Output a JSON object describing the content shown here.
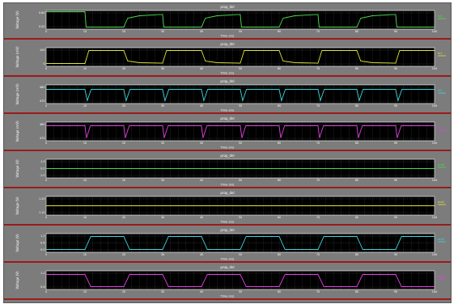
{
  "panels": [
    {
      "title": "prop_del",
      "ylabel": "Voltage (V)",
      "xlabel": "Time (ns)",
      "legend": "in0",
      "color": "#4cdc4c",
      "yticks": [
        "0.60",
        "0.00"
      ],
      "xticks": [
        "0",
        "10",
        "20",
        "30",
        "40",
        "50",
        "60",
        "70",
        "80",
        "90",
        "100"
      ]
    },
    {
      "title": "prop_del",
      "ylabel": "Voltage (mV)",
      "xlabel": "Time (ns)",
      "legend": "in1",
      "color": "#e2e23a",
      "yticks": [
        "100",
        "0"
      ],
      "xticks": [
        "0",
        "10",
        "20",
        "30",
        "40",
        "50",
        "60",
        "70",
        "80",
        "90",
        "100"
      ]
    },
    {
      "title": "prop_del",
      "ylabel": "Voltage (mV)",
      "xlabel": "Time (ns)",
      "legend": "in2",
      "color": "#3ad6dc",
      "yticks": [
        "480",
        "470"
      ],
      "xticks": [
        "0",
        "10",
        "20",
        "30",
        "40",
        "50",
        "60",
        "70",
        "80",
        "90",
        "100"
      ]
    },
    {
      "title": "prop_del",
      "ylabel": "Voltage (mV)",
      "xlabel": "Time (ns)",
      "legend": "in3",
      "color": "#e040e0",
      "yticks": [
        "480",
        "470"
      ],
      "xticks": [
        "0",
        "10",
        "20",
        "30",
        "40",
        "50",
        "60",
        "70",
        "80",
        "90",
        "100"
      ]
    },
    {
      "title": "prop_del",
      "ylabel": "Voltage (V)",
      "xlabel": "Time (ns)",
      "legend": "out0",
      "color": "#4cdc4c",
      "yticks": [
        "1.0",
        "0.0",
        "-1.0"
      ],
      "xticks": [
        "0",
        "10",
        "20",
        "30",
        "40",
        "50",
        "60",
        "70",
        "80",
        "90",
        "100"
      ]
    },
    {
      "title": "prop_del",
      "ylabel": "Voltage (V)",
      "xlabel": "Time (ns)",
      "legend": "out1",
      "color": "#e2e23a",
      "yticks": [
        "1.20",
        "1.10"
      ],
      "xticks": [
        "0",
        "10",
        "20",
        "30",
        "40",
        "50",
        "60",
        "70",
        "80",
        "90",
        "100"
      ]
    },
    {
      "title": "prop_del",
      "ylabel": "Voltage (V)",
      "xlabel": "Time (ns)",
      "legend": "out2",
      "color": "#3ad6dc",
      "yticks": [
        "1.2",
        "0.6",
        "0.0"
      ],
      "xticks": [
        "0",
        "10",
        "20",
        "30",
        "40",
        "50",
        "60",
        "70",
        "80",
        "90",
        "100"
      ]
    },
    {
      "title": "prop_del",
      "ylabel": "Voltage (V)",
      "xlabel": "Time (ns)",
      "legend": "out3",
      "color": "#e040e0",
      "yticks": [
        "1.2",
        "0.6"
      ],
      "xticks": [
        "0",
        "10",
        "20",
        "30",
        "40",
        "50",
        "60",
        "70",
        "80",
        "90",
        "100"
      ]
    }
  ],
  "waves": [
    {
      "kind": "in0",
      "points": [
        [
          0,
          1
        ],
        [
          10,
          1
        ],
        [
          10.3,
          0.05
        ],
        [
          20,
          0.05
        ],
        [
          21,
          0.6
        ],
        [
          24,
          0.75
        ],
        [
          29,
          0.82
        ],
        [
          30,
          0.82
        ],
        [
          30.3,
          0.05
        ],
        [
          40,
          0.05
        ],
        [
          41,
          0.6
        ],
        [
          44,
          0.75
        ],
        [
          49,
          0.82
        ],
        [
          50,
          0.82
        ],
        [
          50.3,
          0.05
        ],
        [
          60,
          0.05
        ],
        [
          61,
          0.6
        ],
        [
          64,
          0.75
        ],
        [
          69,
          0.82
        ],
        [
          70,
          0.82
        ],
        [
          70.3,
          0.05
        ],
        [
          80,
          0.05
        ],
        [
          81,
          0.6
        ],
        [
          84,
          0.75
        ],
        [
          89,
          0.82
        ],
        [
          90,
          0.82
        ],
        [
          90.3,
          0.05
        ],
        [
          100,
          0.05
        ]
      ]
    },
    {
      "kind": "in1",
      "points": [
        [
          0,
          0.1
        ],
        [
          10,
          0.1
        ],
        [
          11,
          0.9
        ],
        [
          20,
          0.9
        ],
        [
          21,
          0.25
        ],
        [
          24,
          0.15
        ],
        [
          30,
          0.12
        ],
        [
          31,
          0.9
        ],
        [
          40,
          0.9
        ],
        [
          41,
          0.25
        ],
        [
          44,
          0.15
        ],
        [
          50,
          0.12
        ],
        [
          51,
          0.9
        ],
        [
          60,
          0.9
        ],
        [
          61,
          0.25
        ],
        [
          64,
          0.15
        ],
        [
          70,
          0.12
        ],
        [
          71,
          0.9
        ],
        [
          80,
          0.9
        ],
        [
          81,
          0.25
        ],
        [
          84,
          0.15
        ],
        [
          90,
          0.12
        ],
        [
          91,
          0.9
        ],
        [
          100,
          0.9
        ]
      ]
    },
    {
      "kind": "in2",
      "points": [
        [
          0,
          0.8
        ],
        [
          10,
          0.8
        ],
        [
          10.6,
          0.1
        ],
        [
          11.6,
          0.8
        ],
        [
          20,
          0.8
        ],
        [
          20.6,
          0.1
        ],
        [
          21.6,
          0.8
        ],
        [
          30,
          0.8
        ],
        [
          30.6,
          0.1
        ],
        [
          31.6,
          0.8
        ],
        [
          40,
          0.8
        ],
        [
          40.6,
          0.1
        ],
        [
          41.6,
          0.8
        ],
        [
          50,
          0.8
        ],
        [
          50.6,
          0.1
        ],
        [
          51.6,
          0.8
        ],
        [
          60,
          0.8
        ],
        [
          60.6,
          0.1
        ],
        [
          61.6,
          0.8
        ],
        [
          70,
          0.8
        ],
        [
          70.6,
          0.1
        ],
        [
          71.6,
          0.8
        ],
        [
          80,
          0.8
        ],
        [
          80.6,
          0.1
        ],
        [
          81.6,
          0.8
        ],
        [
          90,
          0.8
        ],
        [
          90.6,
          0.1
        ],
        [
          91.6,
          0.8
        ],
        [
          100,
          0.8
        ]
      ]
    },
    {
      "kind": "in3",
      "points": [
        [
          0,
          0.85
        ],
        [
          10,
          0.85
        ],
        [
          10.4,
          0.1
        ],
        [
          11.4,
          0.85
        ],
        [
          20,
          0.85
        ],
        [
          20.4,
          0.1
        ],
        [
          21.4,
          0.85
        ],
        [
          30,
          0.85
        ],
        [
          30.4,
          0.1
        ],
        [
          31.4,
          0.85
        ],
        [
          40,
          0.85
        ],
        [
          40.4,
          0.1
        ],
        [
          41.4,
          0.85
        ],
        [
          50,
          0.85
        ],
        [
          50.4,
          0.1
        ],
        [
          51.4,
          0.85
        ],
        [
          60,
          0.85
        ],
        [
          60.4,
          0.1
        ],
        [
          61.4,
          0.85
        ],
        [
          70,
          0.85
        ],
        [
          70.4,
          0.1
        ],
        [
          71.4,
          0.85
        ],
        [
          80,
          0.85
        ],
        [
          80.4,
          0.1
        ],
        [
          81.4,
          0.85
        ],
        [
          90,
          0.85
        ],
        [
          90.4,
          0.1
        ],
        [
          91.4,
          0.85
        ],
        [
          100,
          0.85
        ]
      ]
    },
    {
      "kind": "out0",
      "points": [
        [
          0,
          0.5
        ],
        [
          100,
          0.5
        ]
      ]
    },
    {
      "kind": "out1",
      "points": [
        [
          0,
          0.5
        ],
        [
          100,
          0.5
        ]
      ]
    },
    {
      "kind": "out2",
      "points": [
        [
          0,
          0.1
        ],
        [
          10,
          0.1
        ],
        [
          11.5,
          0.9
        ],
        [
          20,
          0.9
        ],
        [
          21.5,
          0.1
        ],
        [
          30,
          0.1
        ],
        [
          31.5,
          0.9
        ],
        [
          40,
          0.9
        ],
        [
          41.5,
          0.1
        ],
        [
          50,
          0.1
        ],
        [
          51.5,
          0.9
        ],
        [
          60,
          0.9
        ],
        [
          61.5,
          0.1
        ],
        [
          70,
          0.1
        ],
        [
          71.5,
          0.9
        ],
        [
          80,
          0.9
        ],
        [
          81.5,
          0.1
        ],
        [
          90,
          0.1
        ],
        [
          91.5,
          0.9
        ],
        [
          100,
          0.9
        ]
      ]
    },
    {
      "kind": "out3",
      "points": [
        [
          0,
          0.85
        ],
        [
          10,
          0.85
        ],
        [
          11.5,
          0.1
        ],
        [
          20,
          0.1
        ],
        [
          21.5,
          0.85
        ],
        [
          30,
          0.85
        ],
        [
          31.5,
          0.1
        ],
        [
          40,
          0.1
        ],
        [
          41.5,
          0.85
        ],
        [
          50,
          0.85
        ],
        [
          51.5,
          0.1
        ],
        [
          60,
          0.1
        ],
        [
          61.5,
          0.85
        ],
        [
          70,
          0.85
        ],
        [
          71.5,
          0.1
        ],
        [
          80,
          0.1
        ],
        [
          81.5,
          0.85
        ],
        [
          90,
          0.85
        ],
        [
          91.5,
          0.1
        ],
        [
          100,
          0.1
        ]
      ]
    }
  ]
}
